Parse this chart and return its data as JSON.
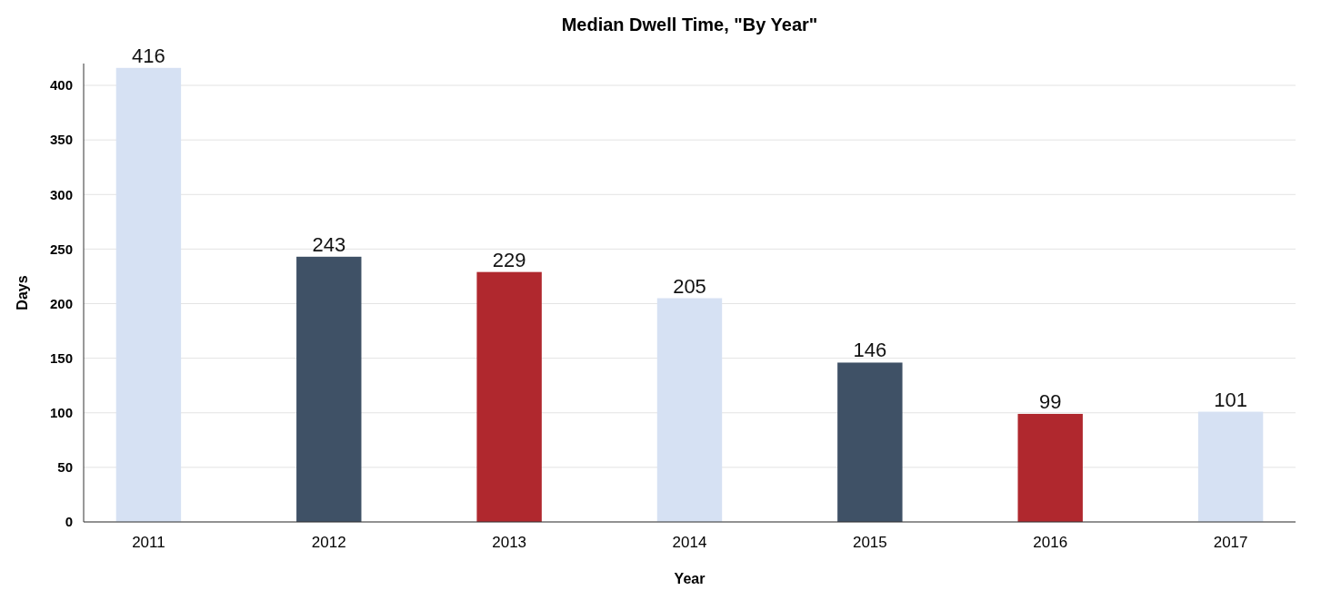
{
  "chart_data": {
    "type": "bar",
    "title": "Median Dwell Time, \"By Year\"",
    "xlabel": "Year",
    "ylabel": "Days",
    "categories": [
      "2011",
      "2012",
      "2013",
      "2014",
      "2015",
      "2016",
      "2017"
    ],
    "values": [
      416,
      243,
      229,
      205,
      146,
      99,
      101
    ],
    "colors": [
      "#d6e1f3",
      "#3f5166",
      "#b0282e",
      "#d6e1f3",
      "#3f5166",
      "#b0282e",
      "#d6e1f3"
    ],
    "ylim": [
      0,
      420
    ],
    "yticks": [
      0,
      50,
      100,
      150,
      200,
      250,
      300,
      350,
      400
    ],
    "grid": "y",
    "data_labels": true
  }
}
